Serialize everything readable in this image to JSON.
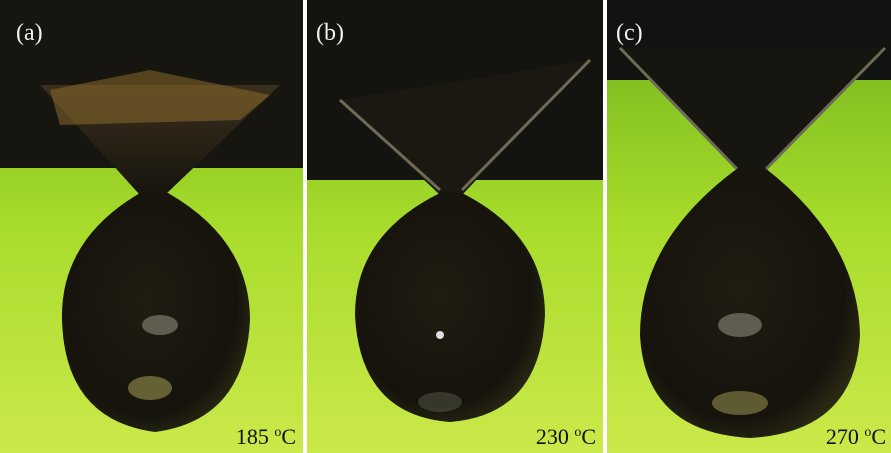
{
  "panels": [
    {
      "label": "(a)",
      "temperature": "185",
      "degree": "o",
      "unit": "C"
    },
    {
      "label": "(b)",
      "temperature": "230",
      "degree": "o",
      "unit": "C"
    },
    {
      "label": "(c)",
      "temperature": "270",
      "degree": "o",
      "unit": "C"
    }
  ]
}
